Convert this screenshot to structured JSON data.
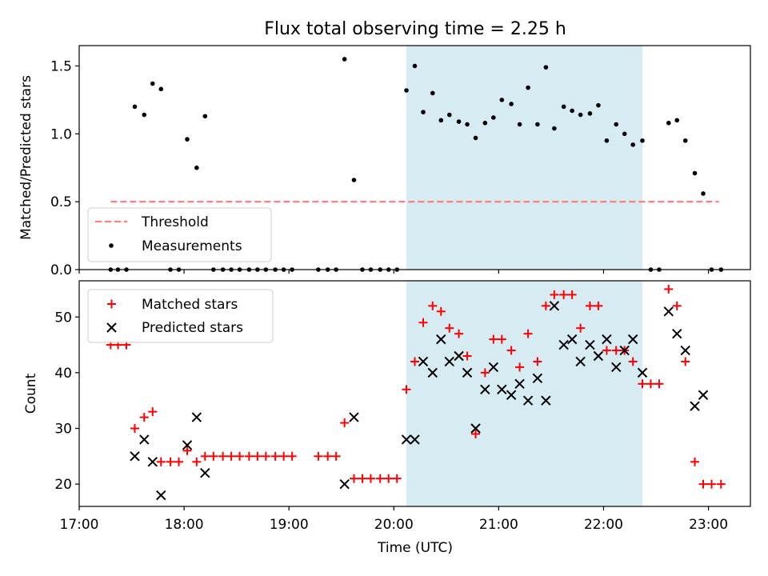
{
  "chart_data": {
    "type": "scatter",
    "title": "Flux total observing time = 2.25 h",
    "xlabel": "Time (UTC)",
    "xlim_hours": [
      17.0,
      23.4
    ],
    "x_ticks": [
      {
        "value": 17,
        "label": "17:00"
      },
      {
        "value": 18,
        "label": "18:00"
      },
      {
        "value": 19,
        "label": "19:00"
      },
      {
        "value": 20,
        "label": "20:00"
      },
      {
        "value": 21,
        "label": "21:00"
      },
      {
        "value": 22,
        "label": "22:00"
      },
      {
        "value": 23,
        "label": "23:00"
      }
    ],
    "shaded_interval_hours": [
      20.12,
      22.37
    ],
    "colors": {
      "shade": "#add8e6",
      "threshold": "#ff7f7f",
      "matched": "#ff0000",
      "predicted": "#000000",
      "measurement": "#000000"
    },
    "top_panel": {
      "ylabel": "Matched/Predicted stars",
      "ylim": [
        0,
        1.65
      ],
      "y_ticks": [
        {
          "value": 0,
          "label": "0.0"
        },
        {
          "value": 0.5,
          "label": "0.5"
        },
        {
          "value": 1.0,
          "label": "1.0"
        },
        {
          "value": 1.5,
          "label": "1.5"
        }
      ],
      "threshold": {
        "value": 0.5,
        "x_start": 17.3,
        "x_end": 23.1,
        "label": "Threshold"
      },
      "measurements_label": "Measurements",
      "measurements": [
        [
          17.3,
          0
        ],
        [
          17.37,
          0
        ],
        [
          17.45,
          0
        ],
        [
          17.53,
          1.2
        ],
        [
          17.62,
          1.14
        ],
        [
          17.7,
          1.37
        ],
        [
          17.78,
          1.33
        ],
        [
          17.87,
          0
        ],
        [
          17.95,
          0
        ],
        [
          18.03,
          0.96
        ],
        [
          18.12,
          0.75
        ],
        [
          18.2,
          1.13
        ],
        [
          18.28,
          0
        ],
        [
          18.37,
          0
        ],
        [
          18.45,
          0
        ],
        [
          18.53,
          0
        ],
        [
          18.62,
          0
        ],
        [
          18.7,
          0
        ],
        [
          18.78,
          0
        ],
        [
          18.87,
          0
        ],
        [
          18.95,
          0
        ],
        [
          19.03,
          0
        ],
        [
          19.28,
          0
        ],
        [
          19.37,
          0
        ],
        [
          19.45,
          0
        ],
        [
          19.53,
          1.55
        ],
        [
          19.62,
          0.66
        ],
        [
          19.7,
          0
        ],
        [
          19.78,
          0
        ],
        [
          19.87,
          0
        ],
        [
          19.95,
          0
        ],
        [
          20.03,
          0
        ],
        [
          20.12,
          1.32
        ],
        [
          20.2,
          1.5
        ],
        [
          20.28,
          1.16
        ],
        [
          20.37,
          1.3
        ],
        [
          20.45,
          1.1
        ],
        [
          20.53,
          1.14
        ],
        [
          20.62,
          1.09
        ],
        [
          20.7,
          1.07
        ],
        [
          20.78,
          0.97
        ],
        [
          20.87,
          1.08
        ],
        [
          20.95,
          1.12
        ],
        [
          21.03,
          1.25
        ],
        [
          21.12,
          1.22
        ],
        [
          21.2,
          1.07
        ],
        [
          21.28,
          1.34
        ],
        [
          21.37,
          1.07
        ],
        [
          21.45,
          1.49
        ],
        [
          21.53,
          1.04
        ],
        [
          21.62,
          1.2
        ],
        [
          21.7,
          1.17
        ],
        [
          21.78,
          1.14
        ],
        [
          21.87,
          1.15
        ],
        [
          21.95,
          1.21
        ],
        [
          22.03,
          0.95
        ],
        [
          22.12,
          1.07
        ],
        [
          22.2,
          1.0
        ],
        [
          22.28,
          0.92
        ],
        [
          22.37,
          0.95
        ],
        [
          22.45,
          0
        ],
        [
          22.53,
          0
        ],
        [
          22.62,
          1.08
        ],
        [
          22.7,
          1.1
        ],
        [
          22.78,
          0.95
        ],
        [
          22.87,
          0.71
        ],
        [
          22.95,
          0.56
        ],
        [
          23.03,
          0
        ],
        [
          23.12,
          0
        ]
      ]
    },
    "bottom_panel": {
      "ylabel": "Count",
      "ylim": [
        16,
        56.5
      ],
      "y_ticks": [
        {
          "value": 20,
          "label": "20"
        },
        {
          "value": 30,
          "label": "30"
        },
        {
          "value": 40,
          "label": "40"
        },
        {
          "value": 50,
          "label": "50"
        }
      ],
      "series": [
        {
          "name": "Matched stars",
          "marker": "+",
          "points": [
            [
              17.3,
              45
            ],
            [
              17.37,
              45
            ],
            [
              17.45,
              45
            ],
            [
              17.53,
              30
            ],
            [
              17.62,
              32
            ],
            [
              17.7,
              33
            ],
            [
              17.78,
              24
            ],
            [
              17.87,
              24
            ],
            [
              17.95,
              24
            ],
            [
              18.03,
              26
            ],
            [
              18.12,
              24
            ],
            [
              18.2,
              25
            ],
            [
              18.28,
              25
            ],
            [
              18.37,
              25
            ],
            [
              18.45,
              25
            ],
            [
              18.53,
              25
            ],
            [
              18.62,
              25
            ],
            [
              18.7,
              25
            ],
            [
              18.78,
              25
            ],
            [
              18.87,
              25
            ],
            [
              18.95,
              25
            ],
            [
              19.03,
              25
            ],
            [
              19.28,
              25
            ],
            [
              19.37,
              25
            ],
            [
              19.45,
              25
            ],
            [
              19.53,
              31
            ],
            [
              19.62,
              21
            ],
            [
              19.7,
              21
            ],
            [
              19.78,
              21
            ],
            [
              19.87,
              21
            ],
            [
              19.95,
              21
            ],
            [
              20.03,
              21
            ],
            [
              20.12,
              37
            ],
            [
              20.2,
              42
            ],
            [
              20.28,
              49
            ],
            [
              20.37,
              52
            ],
            [
              20.45,
              51
            ],
            [
              20.53,
              48
            ],
            [
              20.62,
              47
            ],
            [
              20.7,
              43
            ],
            [
              20.78,
              29
            ],
            [
              20.87,
              40
            ],
            [
              20.95,
              46
            ],
            [
              21.03,
              46
            ],
            [
              21.12,
              44
            ],
            [
              21.2,
              41
            ],
            [
              21.28,
              47
            ],
            [
              21.37,
              42
            ],
            [
              21.45,
              52
            ],
            [
              21.53,
              54
            ],
            [
              21.62,
              54
            ],
            [
              21.7,
              54
            ],
            [
              21.78,
              48
            ],
            [
              21.87,
              52
            ],
            [
              21.95,
              52
            ],
            [
              22.03,
              44
            ],
            [
              22.12,
              44
            ],
            [
              22.2,
              44
            ],
            [
              22.28,
              42
            ],
            [
              22.37,
              38
            ],
            [
              22.45,
              38
            ],
            [
              22.53,
              38
            ],
            [
              22.62,
              55
            ],
            [
              22.7,
              52
            ],
            [
              22.78,
              42
            ],
            [
              22.87,
              24
            ],
            [
              22.95,
              20
            ],
            [
              23.03,
              20
            ],
            [
              23.12,
              20
            ]
          ]
        },
        {
          "name": "Predicted stars",
          "marker": "x",
          "points": [
            [
              17.53,
              25
            ],
            [
              17.62,
              28
            ],
            [
              17.7,
              24
            ],
            [
              17.78,
              18
            ],
            [
              18.03,
              27
            ],
            [
              18.12,
              32
            ],
            [
              18.2,
              22
            ],
            [
              19.53,
              20
            ],
            [
              19.62,
              32
            ],
            [
              20.12,
              28
            ],
            [
              20.2,
              28
            ],
            [
              20.28,
              42
            ],
            [
              20.37,
              40
            ],
            [
              20.45,
              46
            ],
            [
              20.53,
              42
            ],
            [
              20.62,
              43
            ],
            [
              20.7,
              40
            ],
            [
              20.78,
              30
            ],
            [
              20.87,
              37
            ],
            [
              20.95,
              41
            ],
            [
              21.03,
              37
            ],
            [
              21.12,
              36
            ],
            [
              21.2,
              38
            ],
            [
              21.28,
              35
            ],
            [
              21.37,
              39
            ],
            [
              21.45,
              35
            ],
            [
              21.53,
              52
            ],
            [
              21.62,
              45
            ],
            [
              21.7,
              46
            ],
            [
              21.78,
              42
            ],
            [
              21.87,
              45
            ],
            [
              21.95,
              43
            ],
            [
              22.03,
              46
            ],
            [
              22.12,
              41
            ],
            [
              22.2,
              44
            ],
            [
              22.28,
              46
            ],
            [
              22.37,
              40
            ],
            [
              22.62,
              51
            ],
            [
              22.7,
              47
            ],
            [
              22.78,
              44
            ],
            [
              22.87,
              34
            ],
            [
              22.95,
              36
            ]
          ]
        }
      ]
    }
  }
}
